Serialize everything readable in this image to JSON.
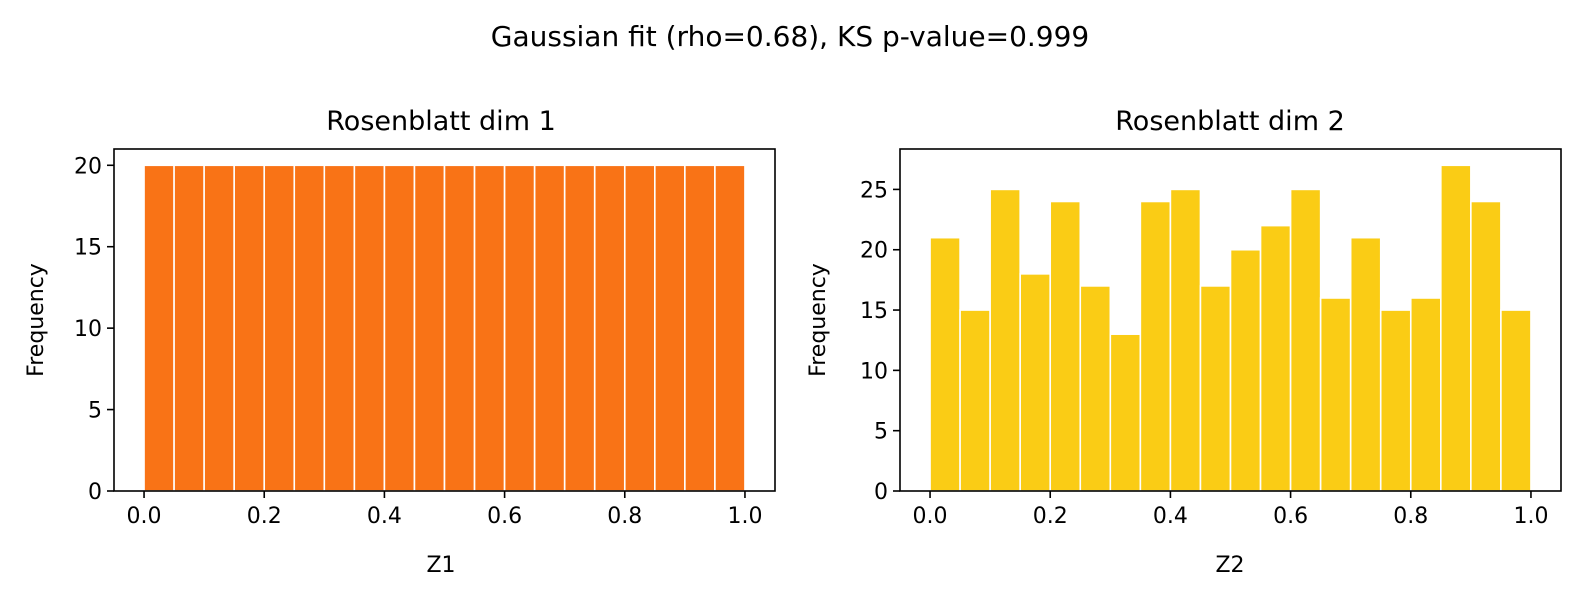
{
  "figure": {
    "title": "Gaussian fit (rho=0.68), KS p-value=0.999"
  },
  "chart_data": [
    {
      "type": "bar",
      "title": "Rosenblatt dim 1",
      "xlabel": "Z1",
      "ylabel": "Frequency",
      "xlim": [
        -0.05,
        1.05
      ],
      "ylim": [
        0,
        21
      ],
      "xticks": [
        0.0,
        0.2,
        0.4,
        0.6,
        0.8,
        1.0
      ],
      "xtick_labels": [
        "0.0",
        "0.2",
        "0.4",
        "0.6",
        "0.8",
        "1.0"
      ],
      "yticks": [
        0,
        5,
        10,
        15,
        20
      ],
      "ytick_labels": [
        "0",
        "5",
        "10",
        "15",
        "20"
      ],
      "bin_edges": [
        0.0,
        0.05,
        0.1,
        0.15,
        0.2,
        0.25,
        0.3,
        0.35,
        0.4,
        0.45,
        0.5,
        0.55,
        0.6,
        0.65,
        0.7,
        0.75,
        0.8,
        0.85,
        0.9,
        0.95,
        1.0
      ],
      "values": [
        20,
        20,
        20,
        20,
        20,
        20,
        20,
        20,
        20,
        20,
        20,
        20,
        20,
        20,
        20,
        20,
        20,
        20,
        20,
        20
      ],
      "color": "#f97316",
      "grid": false
    },
    {
      "type": "bar",
      "title": "Rosenblatt dim 2",
      "xlabel": "Z2",
      "ylabel": "Frequency",
      "xlim": [
        -0.05,
        1.05
      ],
      "ylim": [
        0,
        28.35
      ],
      "xticks": [
        0.0,
        0.2,
        0.4,
        0.6,
        0.8,
        1.0
      ],
      "xtick_labels": [
        "0.0",
        "0.2",
        "0.4",
        "0.6",
        "0.8",
        "1.0"
      ],
      "yticks": [
        0,
        5,
        10,
        15,
        20,
        25
      ],
      "ytick_labels": [
        "0",
        "5",
        "10",
        "15",
        "20",
        "25"
      ],
      "bin_edges": [
        0.0,
        0.05,
        0.1,
        0.15,
        0.2,
        0.25,
        0.3,
        0.35,
        0.4,
        0.45,
        0.5,
        0.55,
        0.6,
        0.65,
        0.7,
        0.75,
        0.8,
        0.85,
        0.9,
        0.95,
        1.0
      ],
      "values": [
        21,
        15,
        25,
        18,
        24,
        17,
        13,
        24,
        25,
        17,
        20,
        22,
        25,
        16,
        21,
        15,
        16,
        27,
        24,
        15
      ],
      "color": "#facc15",
      "grid": false
    }
  ]
}
